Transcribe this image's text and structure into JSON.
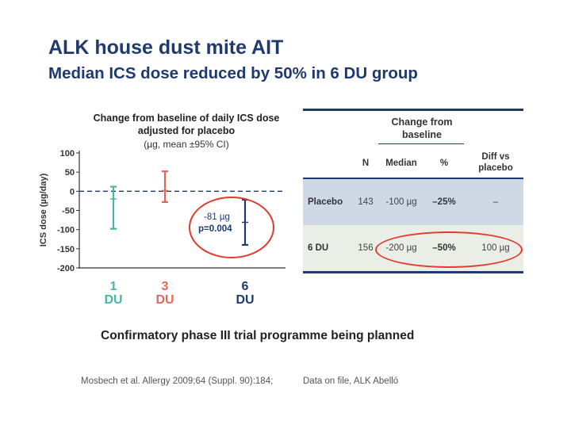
{
  "header": {
    "title": "ALK house dust mite AIT",
    "subtitle": "Median ICS dose reduced by 50% in 6 DU group"
  },
  "chart_data": {
    "type": "errorbar",
    "title_line1": "Change from baseline of daily ICS dose",
    "title_line2": "adjusted for placebo",
    "subtitle": "(µg, mean ±95% CI)",
    "ylabel": "ICS dose (µg/day)",
    "ylim": [
      -200,
      100
    ],
    "yticks": [
      100,
      50,
      0,
      -50,
      -100,
      -150,
      -200
    ],
    "ytick_labels": [
      "100",
      "50",
      "0",
      "-50",
      "-100",
      "-150",
      "-200"
    ],
    "reference_line": 0,
    "groups": [
      {
        "number": "1",
        "unit": "DU",
        "mean": -20,
        "lower": -98,
        "upper": 12,
        "color": "#4bb3a7"
      },
      {
        "number": "3",
        "unit": "DU",
        "mean": 2,
        "lower": -28,
        "upper": 52,
        "color": "#e0675a"
      },
      {
        "number": "6",
        "unit": "DU",
        "mean": -81,
        "lower": -140,
        "upper": -22,
        "color": "#1f3a6e"
      }
    ],
    "annotation": {
      "line1": "-81 µg",
      "line2": "p=0.004",
      "color": "#1f3a6e",
      "circle_color": "#e03b2f"
    }
  },
  "table": {
    "group_header": "Change from baseline",
    "columns": [
      "N",
      "Median",
      "%",
      "Diff vs placebo"
    ],
    "rows": [
      {
        "name": "Placebo",
        "n": "143",
        "median": "-100 µg",
        "pct": "–25%",
        "diff": "–"
      },
      {
        "name": "6 DU",
        "n": "156",
        "median": "-200 µg",
        "pct": "–50%",
        "diff": "100 µg"
      }
    ]
  },
  "footer": {
    "statement": "Confirmatory phase III trial programme being planned",
    "ref1": "Mosbech et al. Allergy 2009;64 (Suppl. 90):184;",
    "ref2": "Data on file, ALK Abelló"
  }
}
